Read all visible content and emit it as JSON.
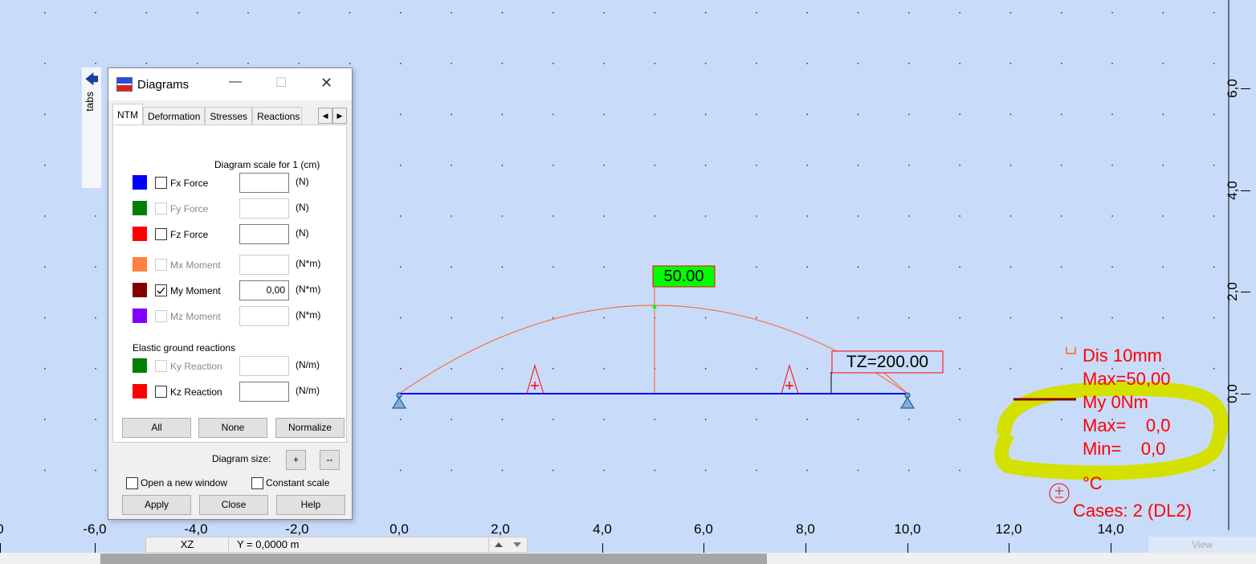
{
  "side_tab": {
    "label": "tabs"
  },
  "dialog": {
    "title": "Diagrams",
    "tabs": [
      "NTM",
      "Deformation",
      "Stresses",
      "Reactions"
    ],
    "scale_header": "Diagram scale for 1  (cm)",
    "rows": [
      {
        "label": "Fx Force",
        "unit": "(N)",
        "color": "#0000ff",
        "checked": false,
        "enabled": true,
        "value": ""
      },
      {
        "label": "Fy Force",
        "unit": "(N)",
        "color": "#008000",
        "checked": false,
        "enabled": false,
        "value": ""
      },
      {
        "label": "Fz Force",
        "unit": "(N)",
        "color": "#ff0000",
        "checked": false,
        "enabled": true,
        "value": ""
      },
      {
        "label": "Mx Moment",
        "unit": "(N*m)",
        "color": "#ff8040",
        "checked": false,
        "enabled": false,
        "value": ""
      },
      {
        "label": "My Moment",
        "unit": "(N*m)",
        "color": "#800000",
        "checked": true,
        "enabled": true,
        "value": "0,00"
      },
      {
        "label": "Mz Moment",
        "unit": "(N*m)",
        "color": "#8000ff",
        "checked": false,
        "enabled": false,
        "value": ""
      }
    ],
    "elastic_header": "Elastic ground reactions",
    "elastic_rows": [
      {
        "label": "Ky Reaction",
        "unit": "(N/m)",
        "color": "#008000",
        "checked": false,
        "enabled": false,
        "value": ""
      },
      {
        "label": "Kz Reaction",
        "unit": "(N/m)",
        "color": "#ff0000",
        "checked": false,
        "enabled": true,
        "value": ""
      }
    ],
    "buttons": {
      "all": "All",
      "none": "None",
      "normalize": "Normalize",
      "apply": "Apply",
      "close": "Close",
      "help": "Help",
      "plus": "+",
      "minus": "--"
    },
    "diagram_size_label": "Diagram size:",
    "open_new_window": "Open a new window",
    "constant_scale": "Constant scale"
  },
  "viewport": {
    "x_ticks": [
      "0",
      "-6,0",
      "-4,0",
      "-2,0",
      "0,0",
      "2,0",
      "4,0",
      "6,0",
      "8,0",
      "10,0",
      "12,0",
      "14,0"
    ],
    "y_ticks": [
      "0,0",
      "2,0",
      "4,0",
      "6,0"
    ],
    "peak_label": "50.00",
    "load_label": "TZ=200.00",
    "legend": {
      "dis": "Dis  10mm",
      "max1": "Max=50,00",
      "my": "My  0Nm",
      "max2": "Max=    0,0",
      "min": "Min=    0,0",
      "temp": "°C",
      "cases": "Cases: 2 (DL2)"
    },
    "colors": {
      "beam": "#0000ff",
      "deformation": "#ff6020",
      "legend": "#ff0000",
      "highlight": "#d4e000",
      "peak_bg": "#00ff00"
    }
  },
  "statusbar": {
    "plane": "XZ",
    "coord": "Y = 0,0000 m",
    "view": "View"
  }
}
